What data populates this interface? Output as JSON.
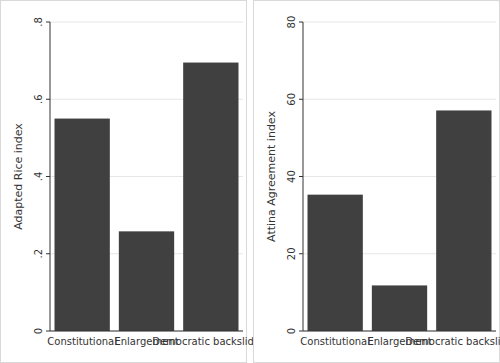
{
  "chart_data": [
    {
      "type": "bar",
      "y_label": "Adapted Rice index",
      "categories": [
        "Constitutional",
        "Enlargement",
        "Democratic backsliding"
      ],
      "values": [
        0.55,
        0.258,
        0.695
      ],
      "color": "#404040",
      "ylim": [
        0,
        0.8
      ],
      "yticks": [
        0,
        {
          "value": 0.2,
          "label": ".2"
        },
        {
          "value": 0.4,
          "label": ".4"
        },
        {
          "value": 0.6,
          "label": ".6"
        },
        {
          "value": 0.8,
          "label": ".8"
        }
      ],
      "grid": true
    },
    {
      "type": "bar",
      "y_label": "Attina Agreement index",
      "categories": [
        "Constitutional",
        "Enlargement",
        "Democratic backsliding"
      ],
      "values": [
        35.3,
        11.8,
        57.1
      ],
      "color": "#404040",
      "ylim": [
        0,
        80
      ],
      "yticks": [
        0,
        20,
        40,
        60,
        80
      ],
      "grid": true
    }
  ]
}
